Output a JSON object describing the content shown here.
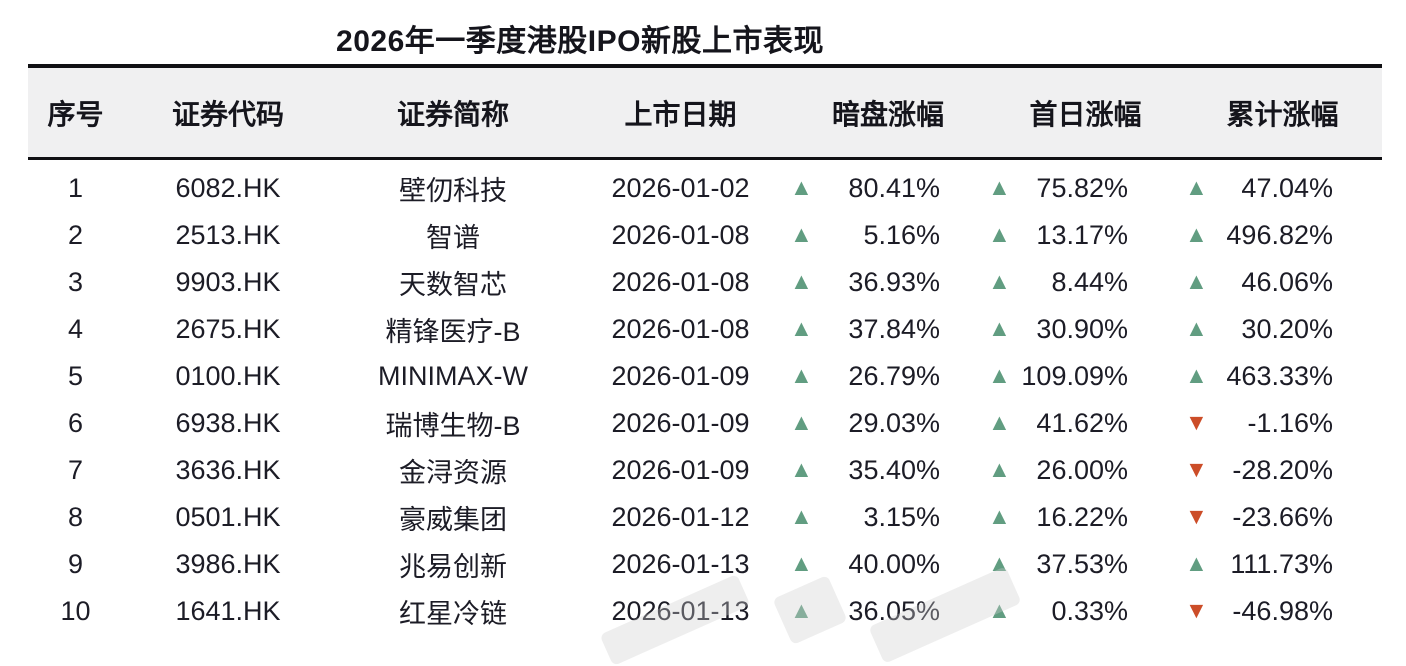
{
  "chart_data": {
    "type": "table",
    "title": "2026年一季度港股IPO新股上市表现",
    "columns": [
      "序号",
      "证券代码",
      "证券简称",
      "上市日期",
      "暗盘涨幅",
      "首日涨幅",
      "累计涨幅"
    ],
    "rows": [
      [
        "1",
        "6082.HK",
        "壁仞科技",
        "2026-01-02",
        {
          "dir": "up",
          "value": "80.41%"
        },
        {
          "dir": "up",
          "value": "75.82%"
        },
        {
          "dir": "up",
          "value": "47.04%"
        }
      ],
      [
        "2",
        "2513.HK",
        "智谱",
        "2026-01-08",
        {
          "dir": "up",
          "value": "5.16%"
        },
        {
          "dir": "up",
          "value": "13.17%"
        },
        {
          "dir": "up",
          "value": "496.82%"
        }
      ],
      [
        "3",
        "9903.HK",
        "天数智芯",
        "2026-01-08",
        {
          "dir": "up",
          "value": "36.93%"
        },
        {
          "dir": "up",
          "value": "8.44%"
        },
        {
          "dir": "up",
          "value": "46.06%"
        }
      ],
      [
        "4",
        "2675.HK",
        "精锋医疗-B",
        "2026-01-08",
        {
          "dir": "up",
          "value": "37.84%"
        },
        {
          "dir": "up",
          "value": "30.90%"
        },
        {
          "dir": "up",
          "value": "30.20%"
        }
      ],
      [
        "5",
        "0100.HK",
        "MINIMAX-W",
        "2026-01-09",
        {
          "dir": "up",
          "value": "26.79%"
        },
        {
          "dir": "up",
          "value": "109.09%"
        },
        {
          "dir": "up",
          "value": "463.33%"
        }
      ],
      [
        "6",
        "6938.HK",
        "瑞博生物-B",
        "2026-01-09",
        {
          "dir": "up",
          "value": "29.03%"
        },
        {
          "dir": "up",
          "value": "41.62%"
        },
        {
          "dir": "down",
          "value": "-1.16%"
        }
      ],
      [
        "7",
        "3636.HK",
        "金浔资源",
        "2026-01-09",
        {
          "dir": "up",
          "value": "35.40%"
        },
        {
          "dir": "up",
          "value": "26.00%"
        },
        {
          "dir": "down",
          "value": "-28.20%"
        }
      ],
      [
        "8",
        "0501.HK",
        "豪威集团",
        "2026-01-12",
        {
          "dir": "up",
          "value": "3.15%"
        },
        {
          "dir": "up",
          "value": "16.22%"
        },
        {
          "dir": "down",
          "value": "-23.66%"
        }
      ],
      [
        "9",
        "3986.HK",
        "兆易创新",
        "2026-01-13",
        {
          "dir": "up",
          "value": "40.00%"
        },
        {
          "dir": "up",
          "value": "37.53%"
        },
        {
          "dir": "up",
          "value": "111.73%"
        }
      ],
      [
        "10",
        "1641.HK",
        "红星冷链",
        "2026-01-13",
        {
          "dir": "up",
          "value": "36.05%"
        },
        {
          "dir": "up",
          "value": "0.33%"
        },
        {
          "dir": "down",
          "value": "-46.98%"
        }
      ]
    ],
    "icons": {
      "up": "▲",
      "down": "▼"
    },
    "colors": {
      "up_triangle": "#619d81",
      "down_triangle": "#cc4d28"
    },
    "layout_hints": {
      "header_background": "#f0f0f1",
      "rule_color": "#101014",
      "grid": "off"
    }
  }
}
